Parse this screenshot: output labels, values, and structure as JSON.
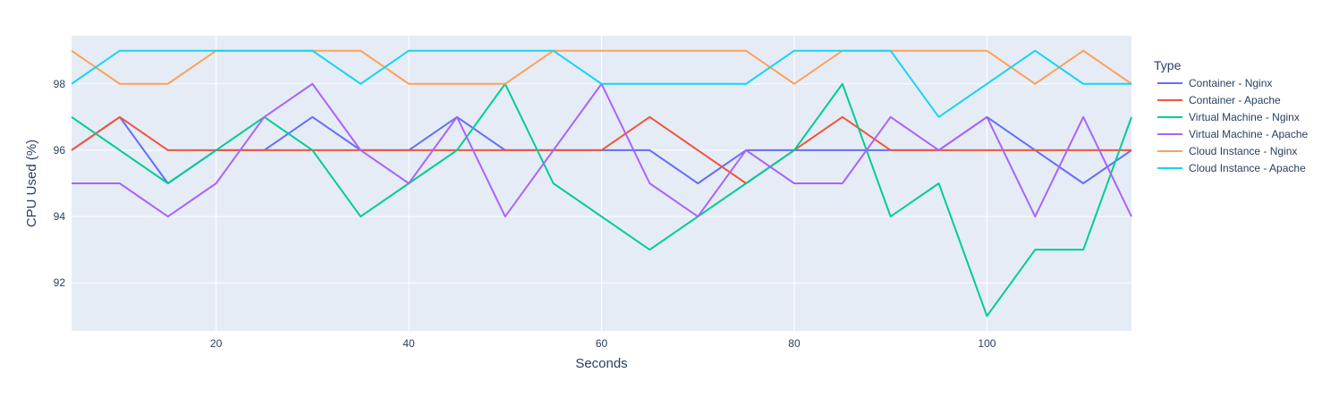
{
  "chart_data": {
    "type": "line",
    "title": "",
    "xlabel": "Seconds",
    "ylabel": "CPU Used (%)",
    "xlim": [
      5,
      115
    ],
    "ylim": [
      90.55,
      99.45
    ],
    "x_ticks": [
      20,
      40,
      60,
      80,
      100
    ],
    "y_ticks": [
      92,
      94,
      96,
      98
    ],
    "grid": true,
    "plot_background": "#e5ecf6",
    "legend": {
      "title": "Type",
      "placement": "right"
    },
    "x": [
      5,
      10,
      15,
      20,
      25,
      30,
      35,
      40,
      45,
      50,
      55,
      60,
      65,
      70,
      75,
      80,
      85,
      90,
      95,
      100,
      105,
      110,
      115
    ],
    "series": [
      {
        "name": "Container - Nginx",
        "color": "#636efa",
        "values": [
          96,
          97,
          95,
          96,
          96,
          97,
          96,
          96,
          97,
          96,
          96,
          96,
          96,
          95,
          96,
          96,
          96,
          96,
          96,
          97,
          96,
          95,
          96
        ]
      },
      {
        "name": "Container - Apache",
        "color": "#ef553b",
        "values": [
          96,
          97,
          96,
          96,
          96,
          96,
          96,
          96,
          96,
          96,
          96,
          96,
          97,
          96,
          95,
          96,
          97,
          96,
          96,
          96,
          96,
          96,
          96
        ]
      },
      {
        "name": "Virtual Machine - Nginx",
        "color": "#00cc96",
        "values": [
          97,
          96,
          95,
          96,
          97,
          96,
          94,
          95,
          96,
          98,
          95,
          94,
          93,
          94,
          95,
          96,
          98,
          94,
          95,
          91,
          93,
          93,
          97
        ]
      },
      {
        "name": "Virtual Machine - Apache",
        "color": "#ab63fa",
        "values": [
          95,
          95,
          94,
          95,
          97,
          98,
          96,
          95,
          97,
          94,
          96,
          98,
          95,
          94,
          96,
          95,
          95,
          97,
          96,
          97,
          94,
          97,
          94
        ]
      },
      {
        "name": "Cloud Instance - Nginx",
        "color": "#ffa15a",
        "values": [
          99,
          98,
          98,
          99,
          99,
          99,
          99,
          98,
          98,
          98,
          99,
          99,
          99,
          99,
          99,
          98,
          99,
          99,
          99,
          99,
          98,
          99,
          98
        ]
      },
      {
        "name": "Cloud Instance - Apache",
        "color": "#19d3f3",
        "values": [
          98,
          99,
          99,
          99,
          99,
          99,
          98,
          99,
          99,
          99,
          99,
          98,
          98,
          98,
          98,
          99,
          99,
          99,
          97,
          98,
          99,
          98,
          98
        ]
      }
    ]
  }
}
